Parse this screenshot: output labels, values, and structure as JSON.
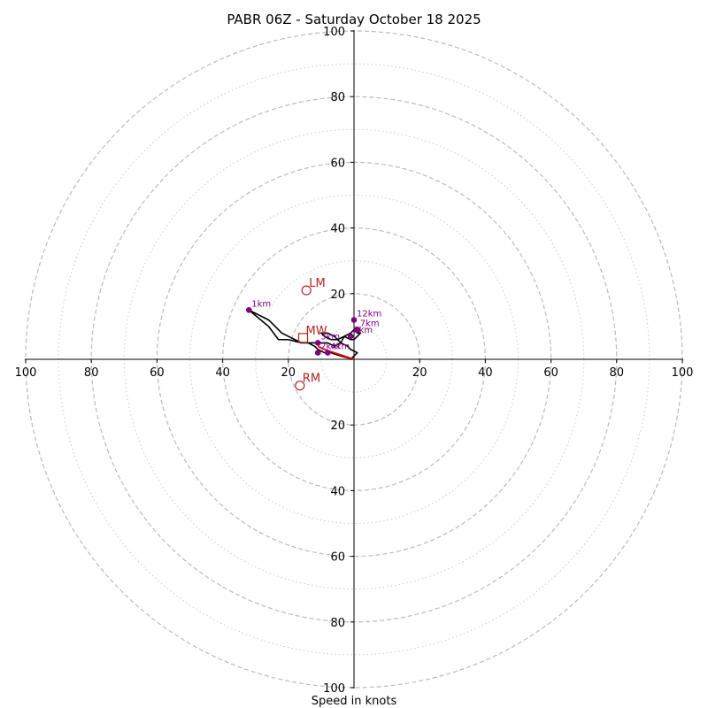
{
  "chart_data": {
    "type": "hodograph",
    "title": "PABR 06Z - Saturday October 18 2025",
    "xlabel": "Speed in knots",
    "max_speed": 100,
    "major_rings": [
      20,
      40,
      60,
      80,
      100
    ],
    "minor_rings": [
      10,
      30,
      50,
      70,
      90
    ],
    "x_tick_labels": [
      "100",
      "80",
      "60",
      "40",
      "20",
      "20",
      "40",
      "60",
      "80",
      "100"
    ],
    "x_tick_values": [
      -100,
      -80,
      -60,
      -40,
      -20,
      20,
      40,
      60,
      80,
      100
    ],
    "y_tick_labels": [
      "100",
      "80",
      "60",
      "40",
      "20",
      "20",
      "40",
      "60",
      "80",
      "100"
    ],
    "y_tick_values": [
      100,
      80,
      60,
      40,
      20,
      -20,
      -40,
      -60,
      -80,
      -100
    ],
    "colors": {
      "trace": "#000000",
      "low_level": "#ff0000",
      "markers": "#800080",
      "motion": "#b22222",
      "rings": "#bbbbbb"
    },
    "trace": {
      "u": [
        0,
        -4,
        -7,
        -9,
        -11,
        -12,
        -14,
        -16,
        -18,
        -20,
        -22,
        -26,
        -32,
        -26,
        -23,
        -20,
        -16,
        -14,
        -12,
        -10,
        -8,
        -6,
        -4,
        -3,
        -1,
        0,
        1,
        2,
        1,
        0,
        -1,
        -3,
        -5,
        -7,
        -9,
        -10,
        -8,
        -6,
        -4,
        -2,
        -1,
        1,
        0,
        -1,
        0
      ],
      "v": [
        0,
        1,
        2,
        2,
        3,
        4,
        5,
        5,
        6,
        7,
        8,
        12,
        15,
        10,
        6,
        6,
        5,
        5,
        5,
        5,
        5,
        4,
        5,
        7,
        6,
        6,
        7,
        8,
        8,
        9,
        8,
        7,
        6,
        6,
        7,
        8,
        8,
        7,
        5,
        4,
        3,
        2,
        1,
        0,
        0
      ]
    },
    "low_level_segment": {
      "u": [
        0,
        -3,
        -6,
        -9,
        -11
      ],
      "v": [
        0,
        1,
        2,
        3,
        4
      ]
    },
    "height_markers": [
      {
        "label": "1km",
        "u": -32,
        "v": 15
      },
      {
        "label": "12km",
        "u": 0,
        "v": 12
      },
      {
        "label": "7km",
        "u": 1,
        "v": 9
      },
      {
        "label": "6km",
        "u": -1,
        "v": 7
      },
      {
        "label": "3km",
        "u": -11,
        "v": 5
      },
      {
        "label": "4km",
        "u": -8,
        "v": 2
      },
      {
        "label": "2km",
        "u": -11,
        "v": 2
      }
    ],
    "storm_motion": [
      {
        "label": "LM",
        "u": -14.5,
        "v": 21,
        "shape": "circle"
      },
      {
        "label": "MW",
        "u": -15.5,
        "v": 6.5,
        "shape": "square"
      },
      {
        "label": "RM",
        "u": -16.5,
        "v": -8,
        "shape": "circle"
      }
    ]
  }
}
